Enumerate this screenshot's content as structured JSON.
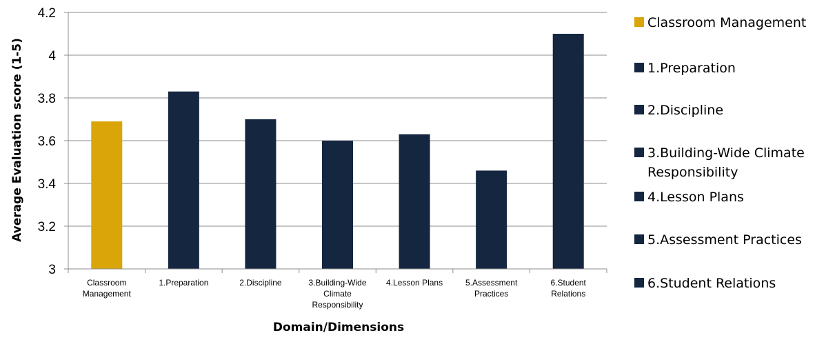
{
  "chart_data": {
    "type": "bar",
    "categories": [
      "Classroom Management",
      "1.Preparation",
      "2.Discipline",
      "3.Building-Wide Climate Responsibility",
      "4.Lesson Plans",
      "5.Assessment Practices",
      "6.Student Relations"
    ],
    "category_labels": [
      [
        "Classroom",
        "Management"
      ],
      [
        "1.Preparation"
      ],
      [
        "2.Discipline"
      ],
      [
        "3.Building-Wide",
        "Climate",
        "Responsibility"
      ],
      [
        "4.Lesson Plans"
      ],
      [
        "5.Assessment",
        "Practices"
      ],
      [
        "6.Student",
        "Relations"
      ]
    ],
    "values": [
      3.69,
      3.83,
      3.7,
      3.6,
      3.63,
      3.46,
      4.1
    ],
    "colors": [
      "#DAA508",
      "#142640",
      "#142640",
      "#142640",
      "#142640",
      "#142640",
      "#142640"
    ],
    "xlabel": "Domain/Dimensions",
    "ylabel": "Average Evaluation score (1-5)",
    "ylim": [
      3,
      4.2
    ],
    "yticks": [
      "3",
      "3.2",
      "3.4",
      "3.6",
      "3.8",
      "4",
      "4.2"
    ],
    "grid": true,
    "legend": {
      "placement": "right",
      "entries": [
        [
          "Classroom Management"
        ],
        [
          "1.Preparation"
        ],
        [
          "2.Discipline"
        ],
        [
          "3.Building-Wide Climate",
          "Responsibility"
        ],
        [
          "4.Lesson Plans"
        ],
        [
          "5.Assessment Practices"
        ],
        [
          "6.Student Relations"
        ]
      ]
    }
  }
}
